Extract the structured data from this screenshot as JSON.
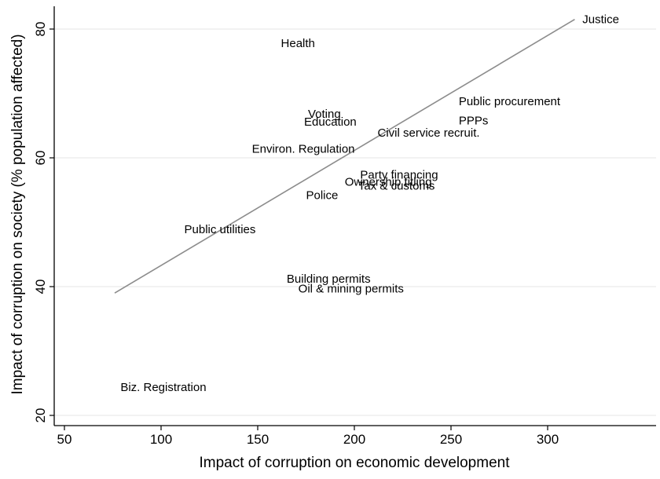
{
  "chart_data": {
    "type": "scatter",
    "title": "",
    "xlabel": "Impact of corruption on economic development",
    "ylabel": "Impact of corruption on society (% population affected)",
    "xlim": [
      45,
      355
    ],
    "ylim": [
      19,
      84
    ],
    "xticks": [
      50,
      100,
      150,
      200,
      250,
      300
    ],
    "yticks": [
      20,
      40,
      60,
      80
    ],
    "grid": true,
    "points": [
      {
        "label": "Justice",
        "x": 318,
        "y": 81.5
      },
      {
        "label": "Health",
        "x": 162,
        "y": 77.8
      },
      {
        "label": "Public procurement",
        "x": 254,
        "y": 68.8
      },
      {
        "label": "Voting",
        "x": 176,
        "y": 66.8
      },
      {
        "label": "Education",
        "x": 174,
        "y": 65.6
      },
      {
        "label": "PPPs",
        "x": 254,
        "y": 65.8
      },
      {
        "label": "Civil service recruit.",
        "x": 212,
        "y": 63.9
      },
      {
        "label": "Environ. Regulation",
        "x": 147,
        "y": 61.4
      },
      {
        "label": "Party financing",
        "x": 203,
        "y": 57.4
      },
      {
        "label": "Ownership titling",
        "x": 195,
        "y": 56.3
      },
      {
        "label": "Tax & customs",
        "x": 202,
        "y": 55.7
      },
      {
        "label": "Police",
        "x": 175,
        "y": 54.2
      },
      {
        "label": "Public utilities",
        "x": 112,
        "y": 48.9
      },
      {
        "label": "Building permits",
        "x": 165,
        "y": 41.2
      },
      {
        "label": "Oil & mining permits",
        "x": 171,
        "y": 39.7
      },
      {
        "label": "Biz. Registration",
        "x": 79,
        "y": 24.4
      }
    ],
    "fit_line": {
      "x1": 76,
      "y1": 39.0,
      "x2": 314,
      "y2": 81.5
    }
  }
}
